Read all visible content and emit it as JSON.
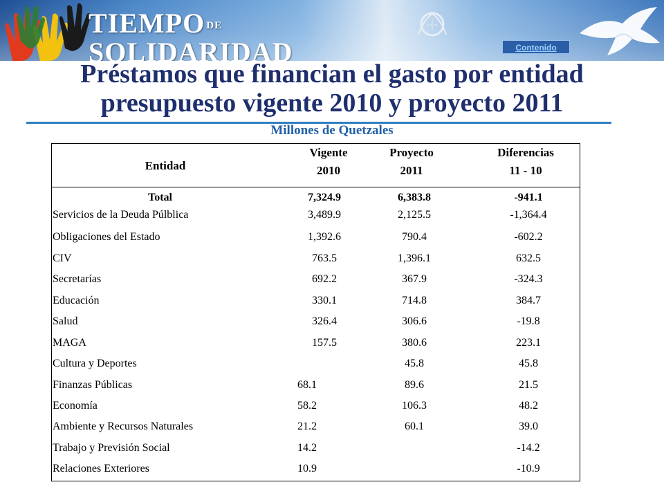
{
  "banner": {
    "brand_line1": "TIEMPO",
    "brand_de": "DE",
    "brand_line2": "SOLIDARIDAD",
    "contenido_link": "Contenido"
  },
  "title": {
    "line1": "Préstamos que financian el gasto por entidad",
    "line2": "presupuesto vigente 2010 y proyecto 2011",
    "subtitle": "Millones de Quetzales"
  },
  "table": {
    "headers": {
      "entidad": "Entidad",
      "vigente_l1": "Vigente",
      "vigente_l2": "2010",
      "proyecto_l1": "Proyecto",
      "proyecto_l2": "2011",
      "diferencias_l1": "Diferencias",
      "diferencias_l2": "11 - 10"
    },
    "rows": [
      {
        "entidad": "Total",
        "vigente": "7,324.9",
        "proyecto": "6,383.8",
        "diferencia": "-941.1"
      },
      {
        "entidad": "Servicios de la Deuda Púlblica",
        "vigente": "3,489.9",
        "proyecto": "2,125.5",
        "diferencia": "-1,364.4"
      },
      {
        "entidad": "Obligaciones del Estado",
        "vigente": "1,392.6",
        "proyecto": "790.4",
        "diferencia": "-602.2"
      },
      {
        "entidad": "CIV",
        "vigente": "763.5",
        "proyecto": "1,396.1",
        "diferencia": "632.5"
      },
      {
        "entidad": "Secretarías",
        "vigente": "692.2",
        "proyecto": "367.9",
        "diferencia": "-324.3"
      },
      {
        "entidad": "Educación",
        "vigente": "330.1",
        "proyecto": "714.8",
        "diferencia": "384.7"
      },
      {
        "entidad": "Salud",
        "vigente": "326.4",
        "proyecto": "306.6",
        "diferencia": "-19.8"
      },
      {
        "entidad": "MAGA",
        "vigente": "157.5",
        "proyecto": "380.6",
        "diferencia": "223.1"
      },
      {
        "entidad": "Cultura y Deportes",
        "vigente": "",
        "proyecto": "45.8",
        "diferencia": "45.8"
      },
      {
        "entidad": "Finanzas Públicas",
        "vigente": "68.1",
        "proyecto": "89.6",
        "diferencia": "21.5"
      },
      {
        "entidad": "Economía",
        "vigente": "58.2",
        "proyecto": "106.3",
        "diferencia": "48.2"
      },
      {
        "entidad": "Ambiente y Recursos Naturales",
        "vigente": "21.2",
        "proyecto": "60.1",
        "diferencia": "39.0"
      },
      {
        "entidad": "Trabajo y Previsión Social",
        "vigente": "14.2",
        "proyecto": "",
        "diferencia": "-14.2"
      },
      {
        "entidad": "Relaciones Exteriores",
        "vigente": "10.9",
        "proyecto": "",
        "diferencia": "-10.9"
      }
    ]
  }
}
